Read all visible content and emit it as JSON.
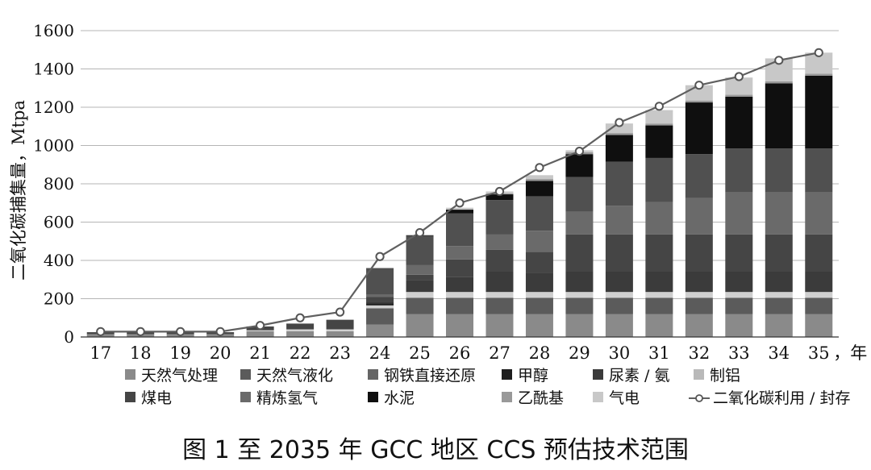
{
  "caption": "图 1  至 2035 年 GCC 地区 CCS 预估技术范围",
  "chart_data": {
    "type": "bar",
    "title": "",
    "ylabel": "二氧化碳捕集量，Mtpa",
    "xlabel": "年",
    "x_unit_suffix": "，年",
    "ylim": [
      0,
      1600
    ],
    "yticks": [
      0,
      200,
      400,
      600,
      800,
      1000,
      1200,
      1400,
      1600
    ],
    "grid": true,
    "categories": [
      "17",
      "18",
      "19",
      "20",
      "21",
      "22",
      "23",
      "24",
      "25",
      "26",
      "27",
      "28",
      "29",
      "30",
      "31",
      "32",
      "33",
      "34",
      "35"
    ],
    "series": [
      {
        "name": "天然气处理",
        "color": "#8a8a8a",
        "values": [
          15,
          15,
          15,
          15,
          30,
          30,
          30,
          65,
          120,
          120,
          120,
          120,
          120,
          120,
          120,
          120,
          120,
          120,
          120
        ]
      },
      {
        "name": "天然气液化",
        "color": "#5b5b5b",
        "values": [
          0,
          0,
          0,
          0,
          0,
          0,
          0,
          85,
          85,
          85,
          85,
          85,
          85,
          85,
          85,
          85,
          85,
          85,
          85
        ]
      },
      {
        "name": "钢铁直接还原",
        "color": "#cfcfcf",
        "values": [
          0,
          0,
          0,
          0,
          5,
          10,
          10,
          15,
          30,
          30,
          30,
          30,
          30,
          30,
          30,
          30,
          30,
          30,
          30
        ]
      },
      {
        "name": "甲醇",
        "color": "#1e1e1e",
        "values": [
          0,
          0,
          0,
          0,
          0,
          0,
          0,
          10,
          0,
          0,
          0,
          0,
          0,
          0,
          0,
          0,
          0,
          0,
          0
        ]
      },
      {
        "name": "尿素 / 氨",
        "color": "#3b3b3b",
        "values": [
          0,
          0,
          0,
          0,
          0,
          0,
          0,
          10,
          60,
          80,
          110,
          100,
          110,
          110,
          110,
          110,
          110,
          110,
          110
        ]
      },
      {
        "name": "制铝",
        "color": "#b9b9b9",
        "values": [
          0,
          0,
          0,
          0,
          0,
          0,
          0,
          0,
          0,
          0,
          0,
          0,
          0,
          0,
          0,
          0,
          0,
          0,
          0
        ]
      },
      {
        "name": "煤电",
        "color": "#454545",
        "values": [
          10,
          10,
          10,
          10,
          20,
          30,
          50,
          25,
          30,
          90,
          110,
          110,
          190,
          190,
          190,
          190,
          190,
          190,
          190
        ]
      },
      {
        "name": "精炼氢气",
        "color": "#6a6a6a",
        "values": [
          0,
          0,
          0,
          0,
          0,
          0,
          0,
          10,
          50,
          70,
          80,
          110,
          120,
          150,
          170,
          190,
          220,
          220,
          220
        ]
      },
      {
        "name": "钢铁直接还原",
        "color": "#505050",
        "values": [
          0,
          0,
          0,
          0,
          0,
          0,
          0,
          140,
          150,
          170,
          180,
          180,
          180,
          230,
          230,
          230,
          230,
          230,
          230
        ]
      },
      {
        "name": "水泥",
        "color": "#0f0f0f",
        "values": [
          0,
          0,
          0,
          0,
          0,
          0,
          0,
          0,
          5,
          20,
          30,
          80,
          120,
          140,
          170,
          270,
          270,
          340,
          380
        ]
      },
      {
        "name": "乙酰基",
        "color": "#999999",
        "values": [
          0,
          0,
          0,
          0,
          0,
          0,
          0,
          0,
          0,
          0,
          5,
          10,
          10,
          10,
          10,
          10,
          10,
          10,
          10
        ]
      },
      {
        "name": "气电",
        "color": "#c8c8c8",
        "values": [
          0,
          0,
          0,
          0,
          0,
          0,
          0,
          0,
          5,
          10,
          10,
          20,
          10,
          50,
          70,
          80,
          90,
          120,
          110
        ]
      }
    ],
    "line": {
      "name": "二氧化碳利用 / 封存",
      "color": "#606060",
      "values": [
        28,
        28,
        28,
        28,
        60,
        100,
        130,
        420,
        545,
        700,
        760,
        885,
        970,
        1120,
        1205,
        1315,
        1360,
        1445,
        1485
      ]
    },
    "legend": {
      "position": "bottom",
      "items": [
        {
          "label": "天然气处理",
          "color": "#8a8a8a",
          "kind": "box"
        },
        {
          "label": "天然气液化",
          "color": "#5b5b5b",
          "kind": "box"
        },
        {
          "label": "钢铁直接还原",
          "color": "#656565",
          "kind": "box"
        },
        {
          "label": "甲醇",
          "color": "#1e1e1e",
          "kind": "box"
        },
        {
          "label": "尿素 / 氨",
          "color": "#3b3b3b",
          "kind": "box"
        },
        {
          "label": "制铝",
          "color": "#b9b9b9",
          "kind": "box"
        },
        {
          "label": "煤电",
          "color": "#454545",
          "kind": "box"
        },
        {
          "label": "精炼氢气",
          "color": "#6a6a6a",
          "kind": "box"
        },
        {
          "label": "水泥",
          "color": "#0f0f0f",
          "kind": "box"
        },
        {
          "label": "乙酰基",
          "color": "#999999",
          "kind": "box"
        },
        {
          "label": "气电",
          "color": "#c8c8c8",
          "kind": "box"
        },
        {
          "label": "二氧化碳利用 / 封存",
          "color": "#606060",
          "kind": "line"
        }
      ]
    }
  }
}
